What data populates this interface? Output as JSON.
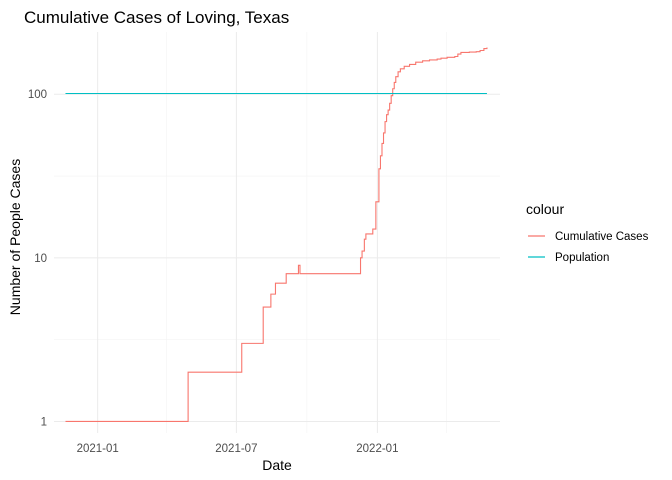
{
  "chart_data": {
    "type": "line",
    "title": "Cumulative Cases of Loving, Texas",
    "xlabel": "Date",
    "ylabel": "Number of People Cases",
    "y_scale": "log10",
    "ylim": [
      0.85,
      240
    ],
    "xlim": [
      "2020-11-05",
      "2022-06-10"
    ],
    "x_ticks": [
      {
        "date": "2021-01-01",
        "label": "2021-01"
      },
      {
        "date": "2021-07-01",
        "label": "2021-07"
      },
      {
        "date": "2022-01-01",
        "label": "2022-01"
      }
    ],
    "x_minor_ticks": [
      "2021-04-01",
      "2021-10-01",
      "2022-04-01"
    ],
    "y_ticks": [
      {
        "value": 1,
        "label": "1"
      },
      {
        "value": 10,
        "label": "10"
      },
      {
        "value": 100,
        "label": "100"
      }
    ],
    "y_minor_ticks": [
      3.162,
      31.62
    ],
    "grid": true,
    "legend": {
      "title": "colour",
      "position": "right"
    },
    "series": [
      {
        "name": "Cumulative Cases",
        "color": "#F8766D",
        "step": true,
        "points": [
          [
            "2020-11-20",
            1
          ],
          [
            "2021-04-28",
            1
          ],
          [
            "2021-04-29",
            2
          ],
          [
            "2021-07-07",
            2
          ],
          [
            "2021-07-08",
            3
          ],
          [
            "2021-08-04",
            3
          ],
          [
            "2021-08-05",
            5
          ],
          [
            "2021-08-14",
            5
          ],
          [
            "2021-08-15",
            6
          ],
          [
            "2021-08-20",
            6
          ],
          [
            "2021-08-21",
            7
          ],
          [
            "2021-09-03",
            7
          ],
          [
            "2021-09-04",
            8
          ],
          [
            "2021-09-19",
            8
          ],
          [
            "2021-09-20",
            9
          ],
          [
            "2021-09-22",
            8
          ],
          [
            "2021-12-08",
            8
          ],
          [
            "2021-12-10",
            10
          ],
          [
            "2021-12-12",
            11
          ],
          [
            "2021-12-15",
            13
          ],
          [
            "2021-12-17",
            14
          ],
          [
            "2021-12-25",
            14
          ],
          [
            "2021-12-26",
            15
          ],
          [
            "2021-12-29",
            15
          ],
          [
            "2021-12-30",
            22
          ],
          [
            "2022-01-02",
            22
          ],
          [
            "2022-01-03",
            35
          ],
          [
            "2022-01-05",
            42
          ],
          [
            "2022-01-07",
            50
          ],
          [
            "2022-01-09",
            58
          ],
          [
            "2022-01-11",
            68
          ],
          [
            "2022-01-13",
            75
          ],
          [
            "2022-01-15",
            80
          ],
          [
            "2022-01-17",
            88
          ],
          [
            "2022-01-19",
            98
          ],
          [
            "2022-01-21",
            108
          ],
          [
            "2022-01-23",
            118
          ],
          [
            "2022-01-25",
            128
          ],
          [
            "2022-01-28",
            137
          ],
          [
            "2022-01-31",
            143
          ],
          [
            "2022-02-05",
            148
          ],
          [
            "2022-02-12",
            152
          ],
          [
            "2022-02-20",
            157
          ],
          [
            "2022-03-01",
            160
          ],
          [
            "2022-03-10",
            162
          ],
          [
            "2022-03-20",
            164
          ],
          [
            "2022-03-25",
            166
          ],
          [
            "2022-04-02",
            168
          ],
          [
            "2022-04-12",
            170
          ],
          [
            "2022-04-16",
            176
          ],
          [
            "2022-04-20",
            180
          ],
          [
            "2022-05-01",
            181
          ],
          [
            "2022-05-10",
            182
          ],
          [
            "2022-05-15",
            185
          ],
          [
            "2022-05-20",
            190
          ],
          [
            "2022-05-24",
            193
          ]
        ]
      },
      {
        "name": "Population",
        "color": "#00BFC4",
        "step": false,
        "points": [
          [
            "2020-11-20",
            101
          ],
          [
            "2022-05-24",
            101
          ]
        ]
      }
    ]
  }
}
